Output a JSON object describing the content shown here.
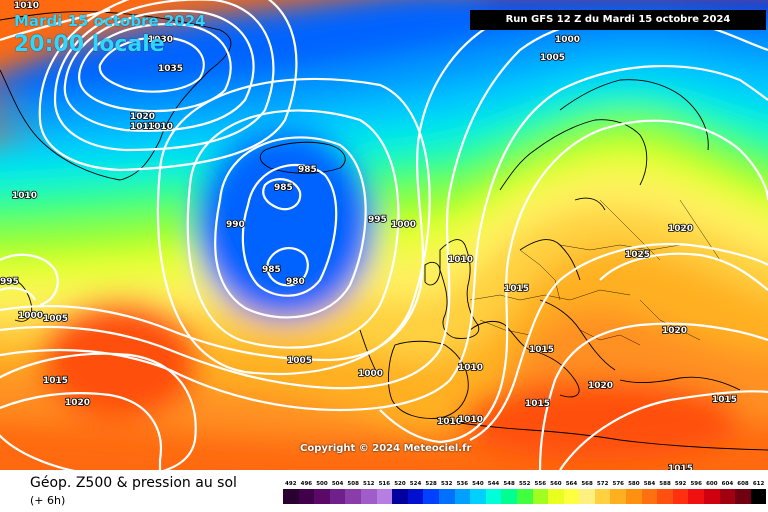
{
  "header": {
    "date": "Mardi 15 octobre 2024",
    "time": "20:00 locale",
    "run": "Run GFS 12 Z du Mardi 15 octobre 2024"
  },
  "copyright": "Copyright © 2024 Meteociel.fr",
  "legend": {
    "title": "Géop. Z500 & pression au sol",
    "subtitle": "(+ 6h)",
    "scale": [
      {
        "label": "492",
        "color": "#2a0030"
      },
      {
        "label": "496",
        "color": "#40004a"
      },
      {
        "label": "500",
        "color": "#5a0a66"
      },
      {
        "label": "504",
        "color": "#70208a"
      },
      {
        "label": "508",
        "color": "#8a3ca8"
      },
      {
        "label": "512",
        "color": "#a05cc8"
      },
      {
        "label": "516",
        "color": "#b67ee0"
      },
      {
        "label": "520",
        "color": "#0000a0"
      },
      {
        "label": "524",
        "color": "#0010d0"
      },
      {
        "label": "528",
        "color": "#0040ff"
      },
      {
        "label": "532",
        "color": "#0070ff"
      },
      {
        "label": "536",
        "color": "#00a0ff"
      },
      {
        "label": "540",
        "color": "#00d0ff"
      },
      {
        "label": "544",
        "color": "#00ffd8"
      },
      {
        "label": "548",
        "color": "#00ff90"
      },
      {
        "label": "552",
        "color": "#40ff40"
      },
      {
        "label": "556",
        "color": "#a0ff20"
      },
      {
        "label": "560",
        "color": "#e8ff20"
      },
      {
        "label": "564",
        "color": "#ffff40"
      },
      {
        "label": "568",
        "color": "#fff080"
      },
      {
        "label": "572",
        "color": "#ffd040"
      },
      {
        "label": "576",
        "color": "#ffb020"
      },
      {
        "label": "580",
        "color": "#ff9010"
      },
      {
        "label": "584",
        "color": "#ff7010"
      },
      {
        "label": "588",
        "color": "#ff5010"
      },
      {
        "label": "592",
        "color": "#ff3010"
      },
      {
        "label": "596",
        "color": "#f01010"
      },
      {
        "label": "600",
        "color": "#d00010"
      },
      {
        "label": "604",
        "color": "#a00010"
      },
      {
        "label": "608",
        "color": "#700010"
      },
      {
        "label": "612",
        "color": "#000000"
      }
    ]
  },
  "isobars": [
    {
      "label": "1010",
      "pos": "top-left"
    },
    {
      "label": "1030"
    },
    {
      "label": "1035"
    },
    {
      "label": "1020"
    },
    {
      "label": "1015"
    },
    {
      "label": "1010"
    },
    {
      "label": "1010"
    },
    {
      "label": "985"
    },
    {
      "label": "985"
    },
    {
      "label": "990"
    },
    {
      "label": "985"
    },
    {
      "label": "980"
    },
    {
      "label": "995"
    },
    {
      "label": "1000"
    },
    {
      "label": "995"
    },
    {
      "label": "1000"
    },
    {
      "label": "1005"
    },
    {
      "label": "1010"
    },
    {
      "label": "1015"
    },
    {
      "label": "1020"
    },
    {
      "label": "1025"
    },
    {
      "label": "1020"
    },
    {
      "label": "1015"
    },
    {
      "label": "1020"
    },
    {
      "label": "1015"
    },
    {
      "label": "1015"
    },
    {
      "label": "1005"
    },
    {
      "label": "1000"
    },
    {
      "label": "1010"
    },
    {
      "label": "1015"
    },
    {
      "label": "1020"
    },
    {
      "label": "1010"
    },
    {
      "label": "1010"
    },
    {
      "label": "1015"
    },
    {
      "label": "1000"
    },
    {
      "label": "1005"
    }
  ]
}
